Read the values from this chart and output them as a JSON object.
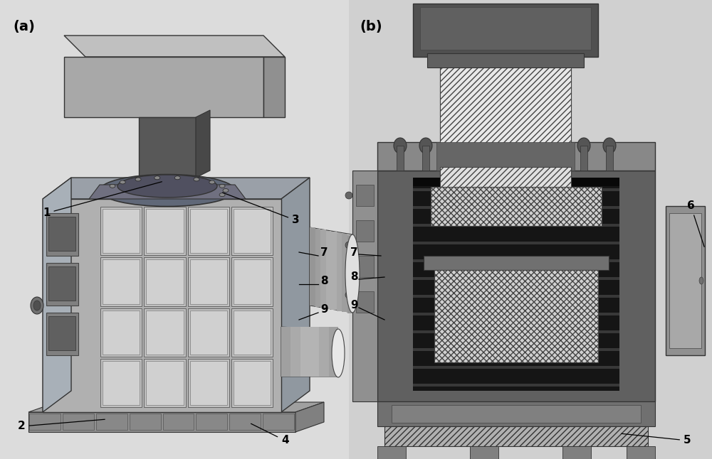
{
  "bg_color_left": "#e0e0e0",
  "bg_color_right": "#d5d5d5",
  "title_a": "(a)",
  "title_b": "(b)",
  "panel_a_bg": "#dcdcdc",
  "panel_b_bg": "#cccccc",
  "dark_steel": "#4a4a50",
  "med_gray": "#808080",
  "light_gray": "#b8b8b8",
  "very_light": "#d8d8d8",
  "black_inner": "#1a1a1a",
  "hatch_color": "#c0c0c0"
}
